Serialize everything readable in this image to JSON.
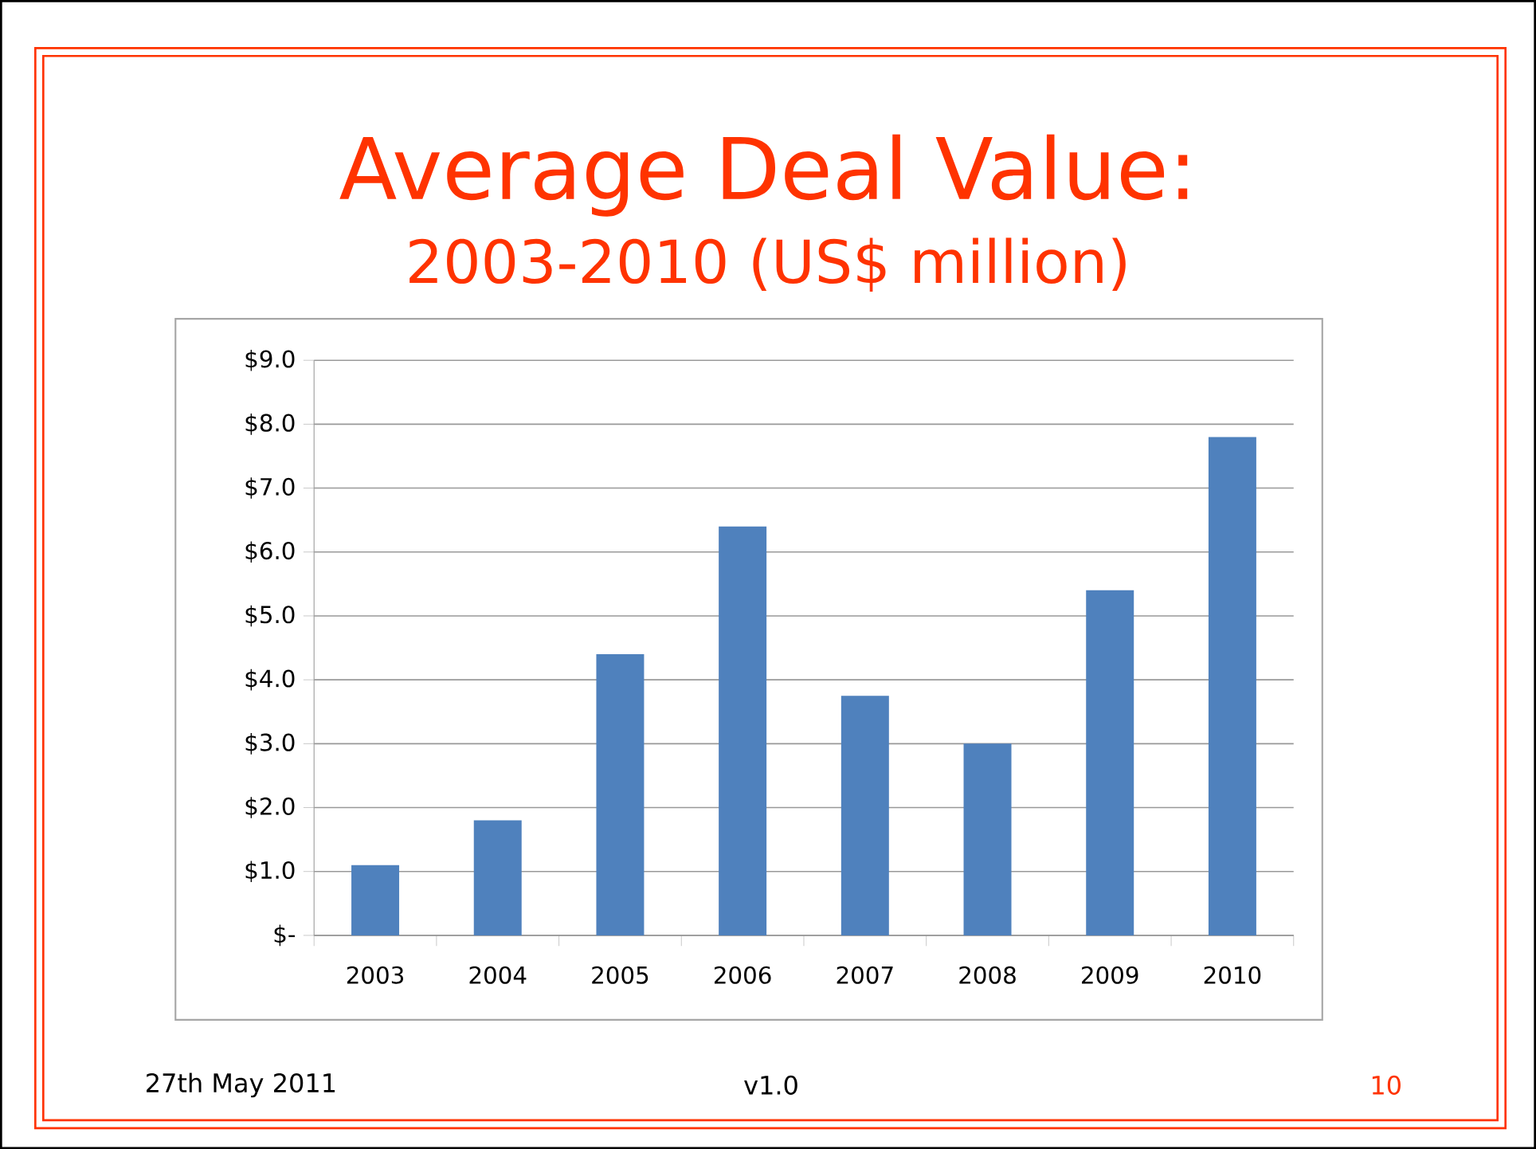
{
  "chart_data": {
    "type": "bar",
    "title": "Average Deal Value:",
    "subtitle": "2003-2010 (US$ million)",
    "categories": [
      "2003",
      "2004",
      "2005",
      "2006",
      "2007",
      "2008",
      "2009",
      "2010"
    ],
    "values": [
      1.1,
      1.8,
      4.4,
      6.4,
      3.75,
      3.0,
      5.4,
      7.8
    ],
    "color": "#4f81bd",
    "ylim": [
      0,
      9
    ],
    "yticks": [
      {
        "value": 0,
        "label": "$-"
      },
      {
        "value": 1,
        "label": "$1.0"
      },
      {
        "value": 2,
        "label": "$2.0"
      },
      {
        "value": 3,
        "label": "$3.0"
      },
      {
        "value": 4,
        "label": "$4.0"
      },
      {
        "value": 5,
        "label": "$5.0"
      },
      {
        "value": 6,
        "label": "$6.0"
      },
      {
        "value": 7,
        "label": "$7.0"
      },
      {
        "value": 8,
        "label": "$8.0"
      },
      {
        "value": 9,
        "label": "$9.0"
      }
    ],
    "grid": "y",
    "annotations": [
      "27th May 2011",
      "v1.0",
      "10"
    ]
  }
}
